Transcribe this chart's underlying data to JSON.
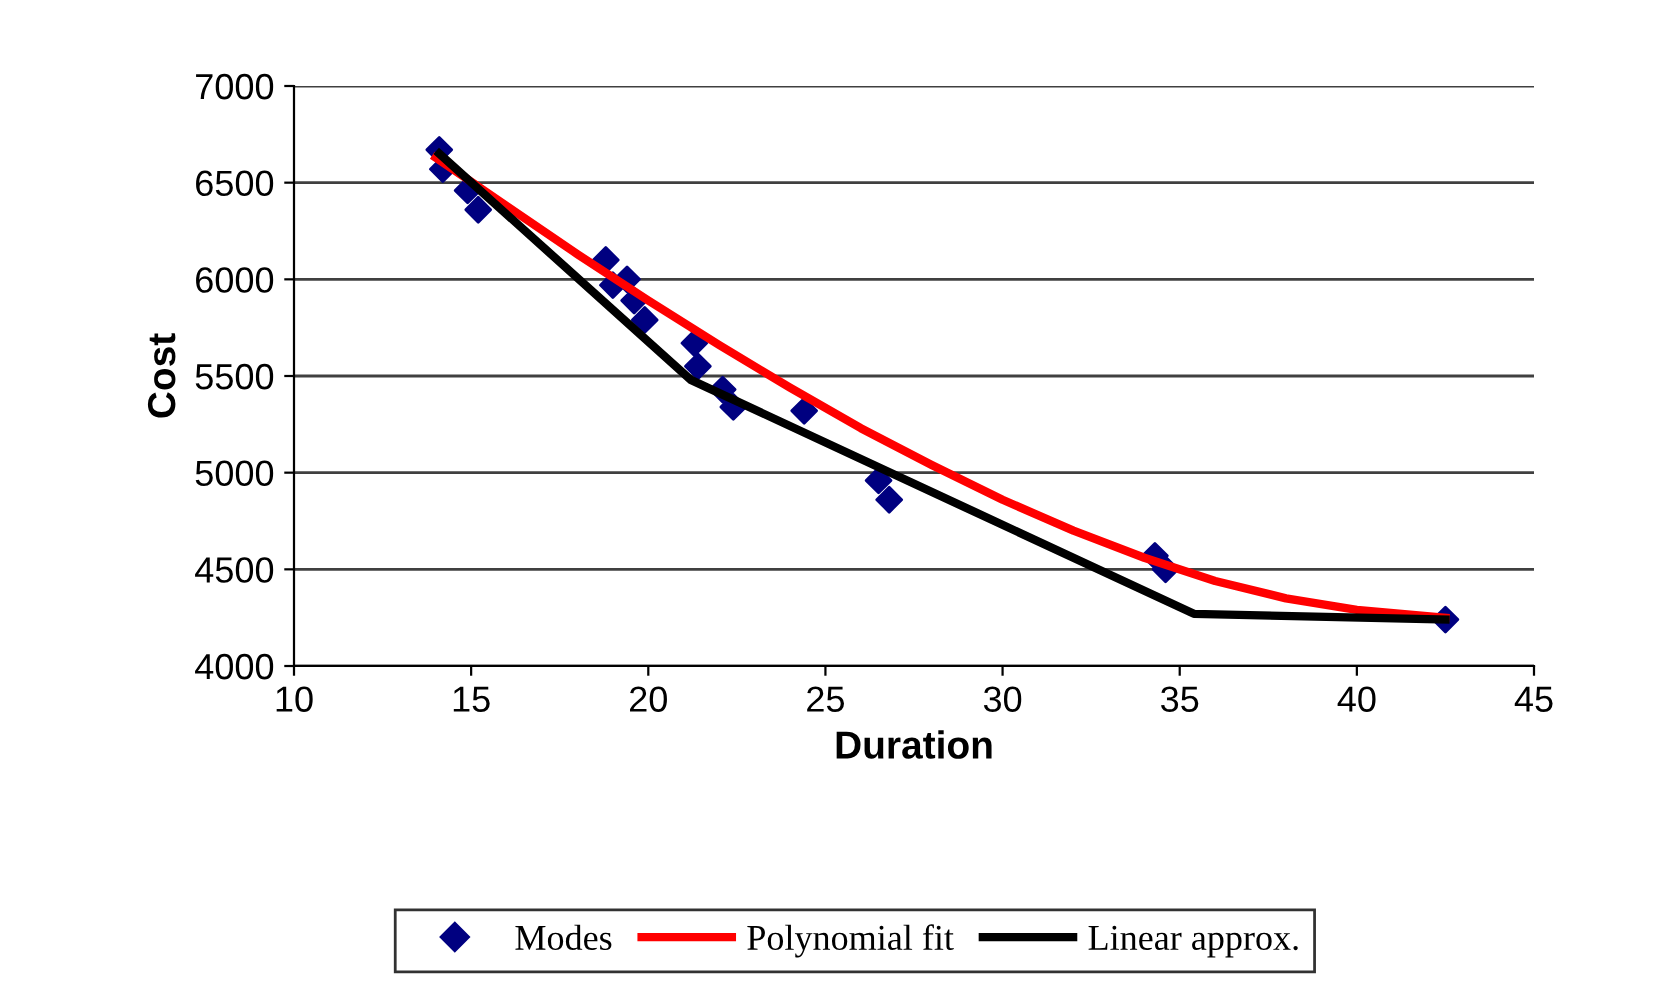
{
  "chart_data": {
    "type": "scatter",
    "xlabel": "Duration",
    "ylabel": "Cost",
    "xlim": [
      10,
      45
    ],
    "xticks": [
      10,
      15,
      20,
      25,
      30,
      35,
      40,
      45
    ],
    "ylim": [
      4000,
      7000
    ],
    "yticks": [
      4000,
      4500,
      5000,
      5500,
      6000,
      6500,
      7000
    ],
    "grid": "y",
    "legend": "bottom",
    "series": [
      {
        "name": "Modes",
        "marker": "diamond",
        "color": "#000080",
        "x": [
          14.1,
          14.2,
          14.9,
          15.2,
          18.8,
          19.0,
          19.4,
          19.6,
          19.9,
          21.3,
          21.4,
          22.1,
          22.4,
          24.4,
          26.5,
          26.8,
          34.3,
          34.6,
          42.5
        ],
        "values": [
          6670,
          6570,
          6460,
          6360,
          6100,
          5970,
          6000,
          5890,
          5790,
          5670,
          5550,
          5430,
          5340,
          5320,
          4960,
          4860,
          4570,
          4500,
          4240
        ]
      },
      {
        "name": "Polynomial fit",
        "type": "line",
        "color": "#ff0000",
        "x": [
          14,
          16,
          18,
          20,
          22,
          24,
          26,
          28,
          30,
          32,
          34,
          36,
          38,
          40,
          42.5
        ],
        "values": [
          6630,
          6380,
          6130,
          5890,
          5660,
          5440,
          5230,
          5040,
          4860,
          4700,
          4560,
          4440,
          4350,
          4290,
          4250
        ]
      },
      {
        "name": "Linear approx.",
        "type": "line",
        "color": "#000000",
        "x": [
          14.1,
          21.2,
          35.4,
          42.5
        ],
        "values": [
          6650,
          5480,
          4270,
          4240
        ]
      }
    ]
  }
}
